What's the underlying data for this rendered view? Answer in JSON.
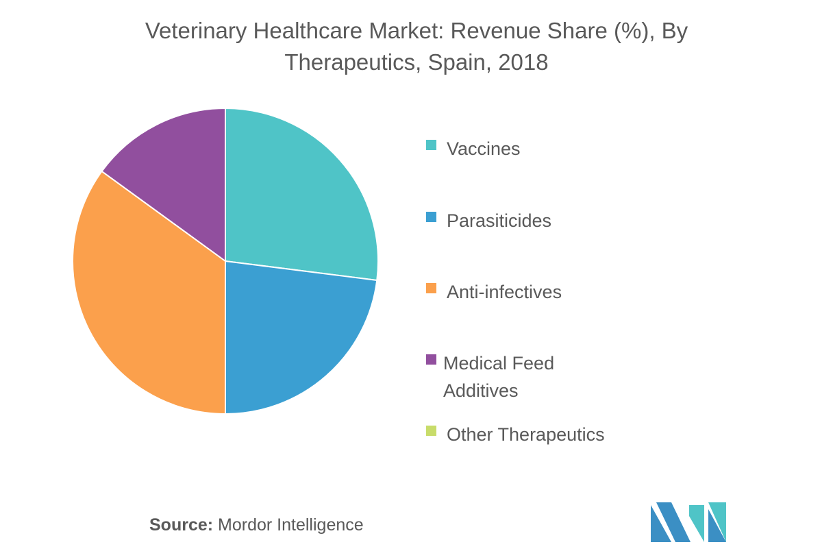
{
  "chart_data": {
    "type": "pie",
    "title": "Veterinary Healthcare  Market: Revenue Share (%), By Therapeutics, Spain, 2018",
    "title_lines": [
      "Veterinary Healthcare  Market: Revenue Share (%), By",
      "Therapeutics, Spain, 2018"
    ],
    "categories": [
      "Vaccines",
      "Parasiticides",
      "Anti-infectives",
      "Medical Feed Additives",
      "Other Therapeutics"
    ],
    "values": [
      27,
      23,
      35,
      15,
      0
    ],
    "colors": [
      "#4fc4c7",
      "#3b9fd2",
      "#fba04c",
      "#914f9e",
      "#c8dc6a"
    ],
    "legend_position": "right",
    "start_angle_deg": 0,
    "direction": "clockwise"
  },
  "source": {
    "label": "Source:",
    "text": "Mordor Intelligence"
  },
  "logo": {
    "icon": "mordor-intelligence-logo-icon",
    "colors": [
      "#3b8fc4",
      "#4fc4c7"
    ]
  }
}
